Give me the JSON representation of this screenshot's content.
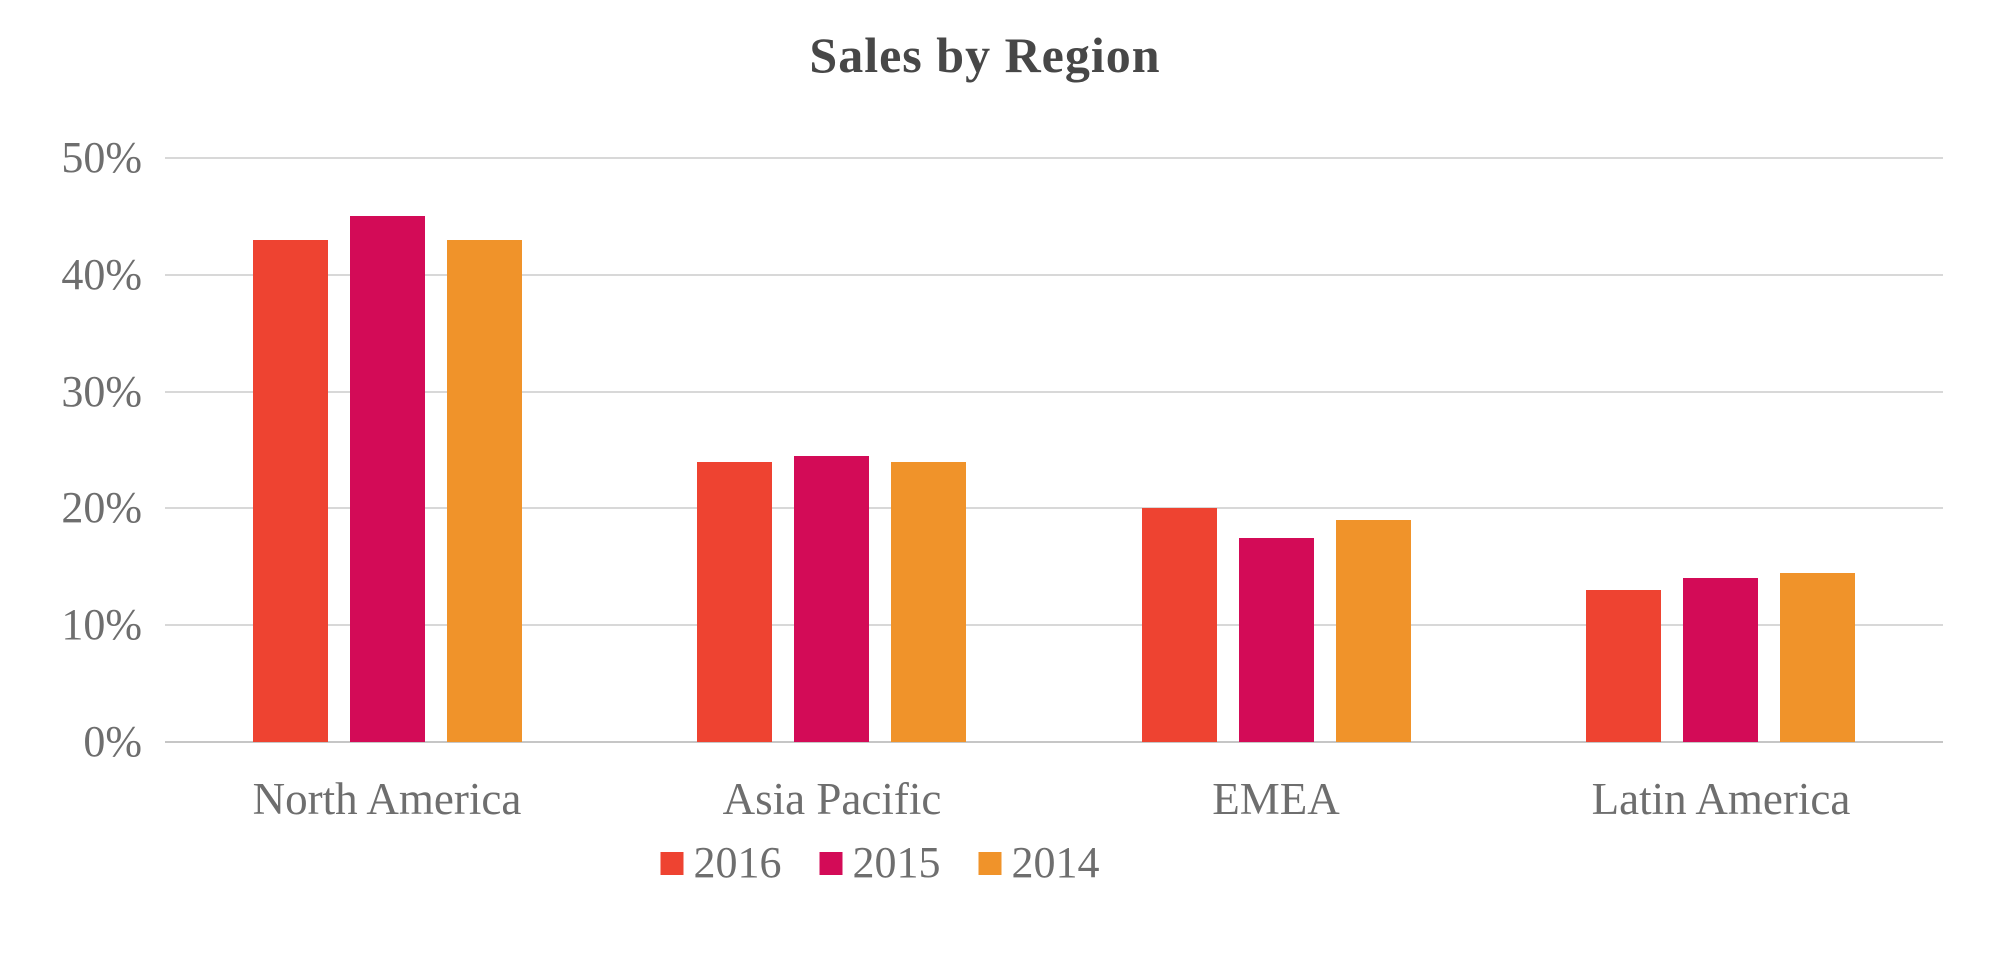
{
  "chart_data": {
    "type": "bar",
    "title": "Sales by Region",
    "categories": [
      "North America",
      "Asia Pacific",
      "EMEA",
      "Latin America"
    ],
    "series": [
      {
        "name": "2016",
        "color": "#EE4331",
        "values": [
          43,
          24,
          20,
          13
        ]
      },
      {
        "name": "2015",
        "color": "#D30B57",
        "values": [
          45,
          24.5,
          17.5,
          14
        ]
      },
      {
        "name": "2014",
        "color": "#F0932A",
        "values": [
          43,
          24,
          19,
          14.5
        ]
      }
    ],
    "ylim": [
      0,
      50
    ],
    "ytick_step": 10,
    "ytick_labels": [
      "0%",
      "10%",
      "20%",
      "30%",
      "40%",
      "50%"
    ],
    "ytick_suffix": "%",
    "grid": true,
    "legend_position": "bottom",
    "colors": {
      "background": "#FFFFFF",
      "gridline": "#D8D8D8",
      "baseline": "#C6C6C6",
      "axis_text": "#6E6E6E",
      "title_text": "#474747"
    }
  }
}
